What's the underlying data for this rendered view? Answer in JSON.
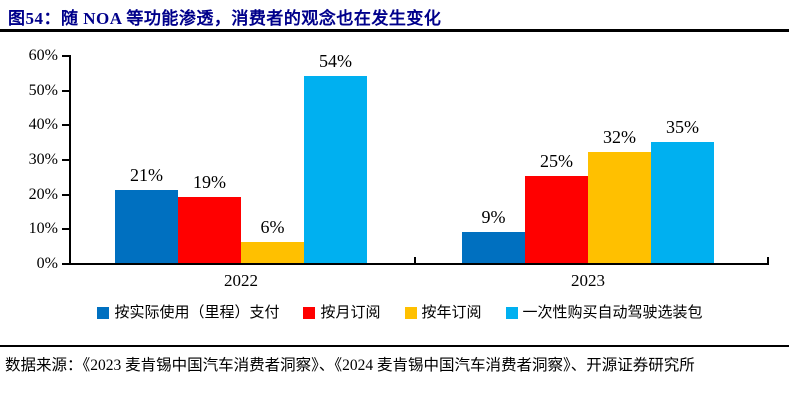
{
  "title": "图54：随 NOA 等功能渗透，消费者的观念也在发生变化",
  "source": "数据来源：《2023 麦肯锡中国汽车消费者洞察》、《2024 麦肯锡中国汽车消费者洞察》、开源证券研究所",
  "colors": {
    "title_text": "#00008B",
    "axis": "#000000",
    "series_blue": "#0070C0",
    "series_red": "#FF0000",
    "series_gold": "#FFC000",
    "series_lightblue": "#00B0F0"
  },
  "chart_data": {
    "type": "bar",
    "categories": [
      "2022",
      "2023"
    ],
    "series": [
      {
        "name": "按实际使用（里程）支付",
        "color": "#0070C0",
        "values": [
          21,
          9
        ]
      },
      {
        "name": "按月订阅",
        "color": "#FF0000",
        "values": [
          19,
          25
        ]
      },
      {
        "name": "按年订阅",
        "color": "#FFC000",
        "values": [
          6,
          32
        ]
      },
      {
        "name": "一次性购买自动驾驶选装包",
        "color": "#00B0F0",
        "values": [
          54,
          35
        ]
      }
    ],
    "title": "图54：随 NOA 等功能渗透，消费者的观念也在发生变化",
    "xlabel": "",
    "ylabel": "",
    "ylim": [
      0,
      60
    ],
    "yticks": [
      0,
      10,
      20,
      30,
      40,
      50,
      60
    ],
    "ytick_suffix": "%",
    "data_label_suffix": "%",
    "grid": false,
    "data_labels": true,
    "legend_position": "bottom"
  }
}
